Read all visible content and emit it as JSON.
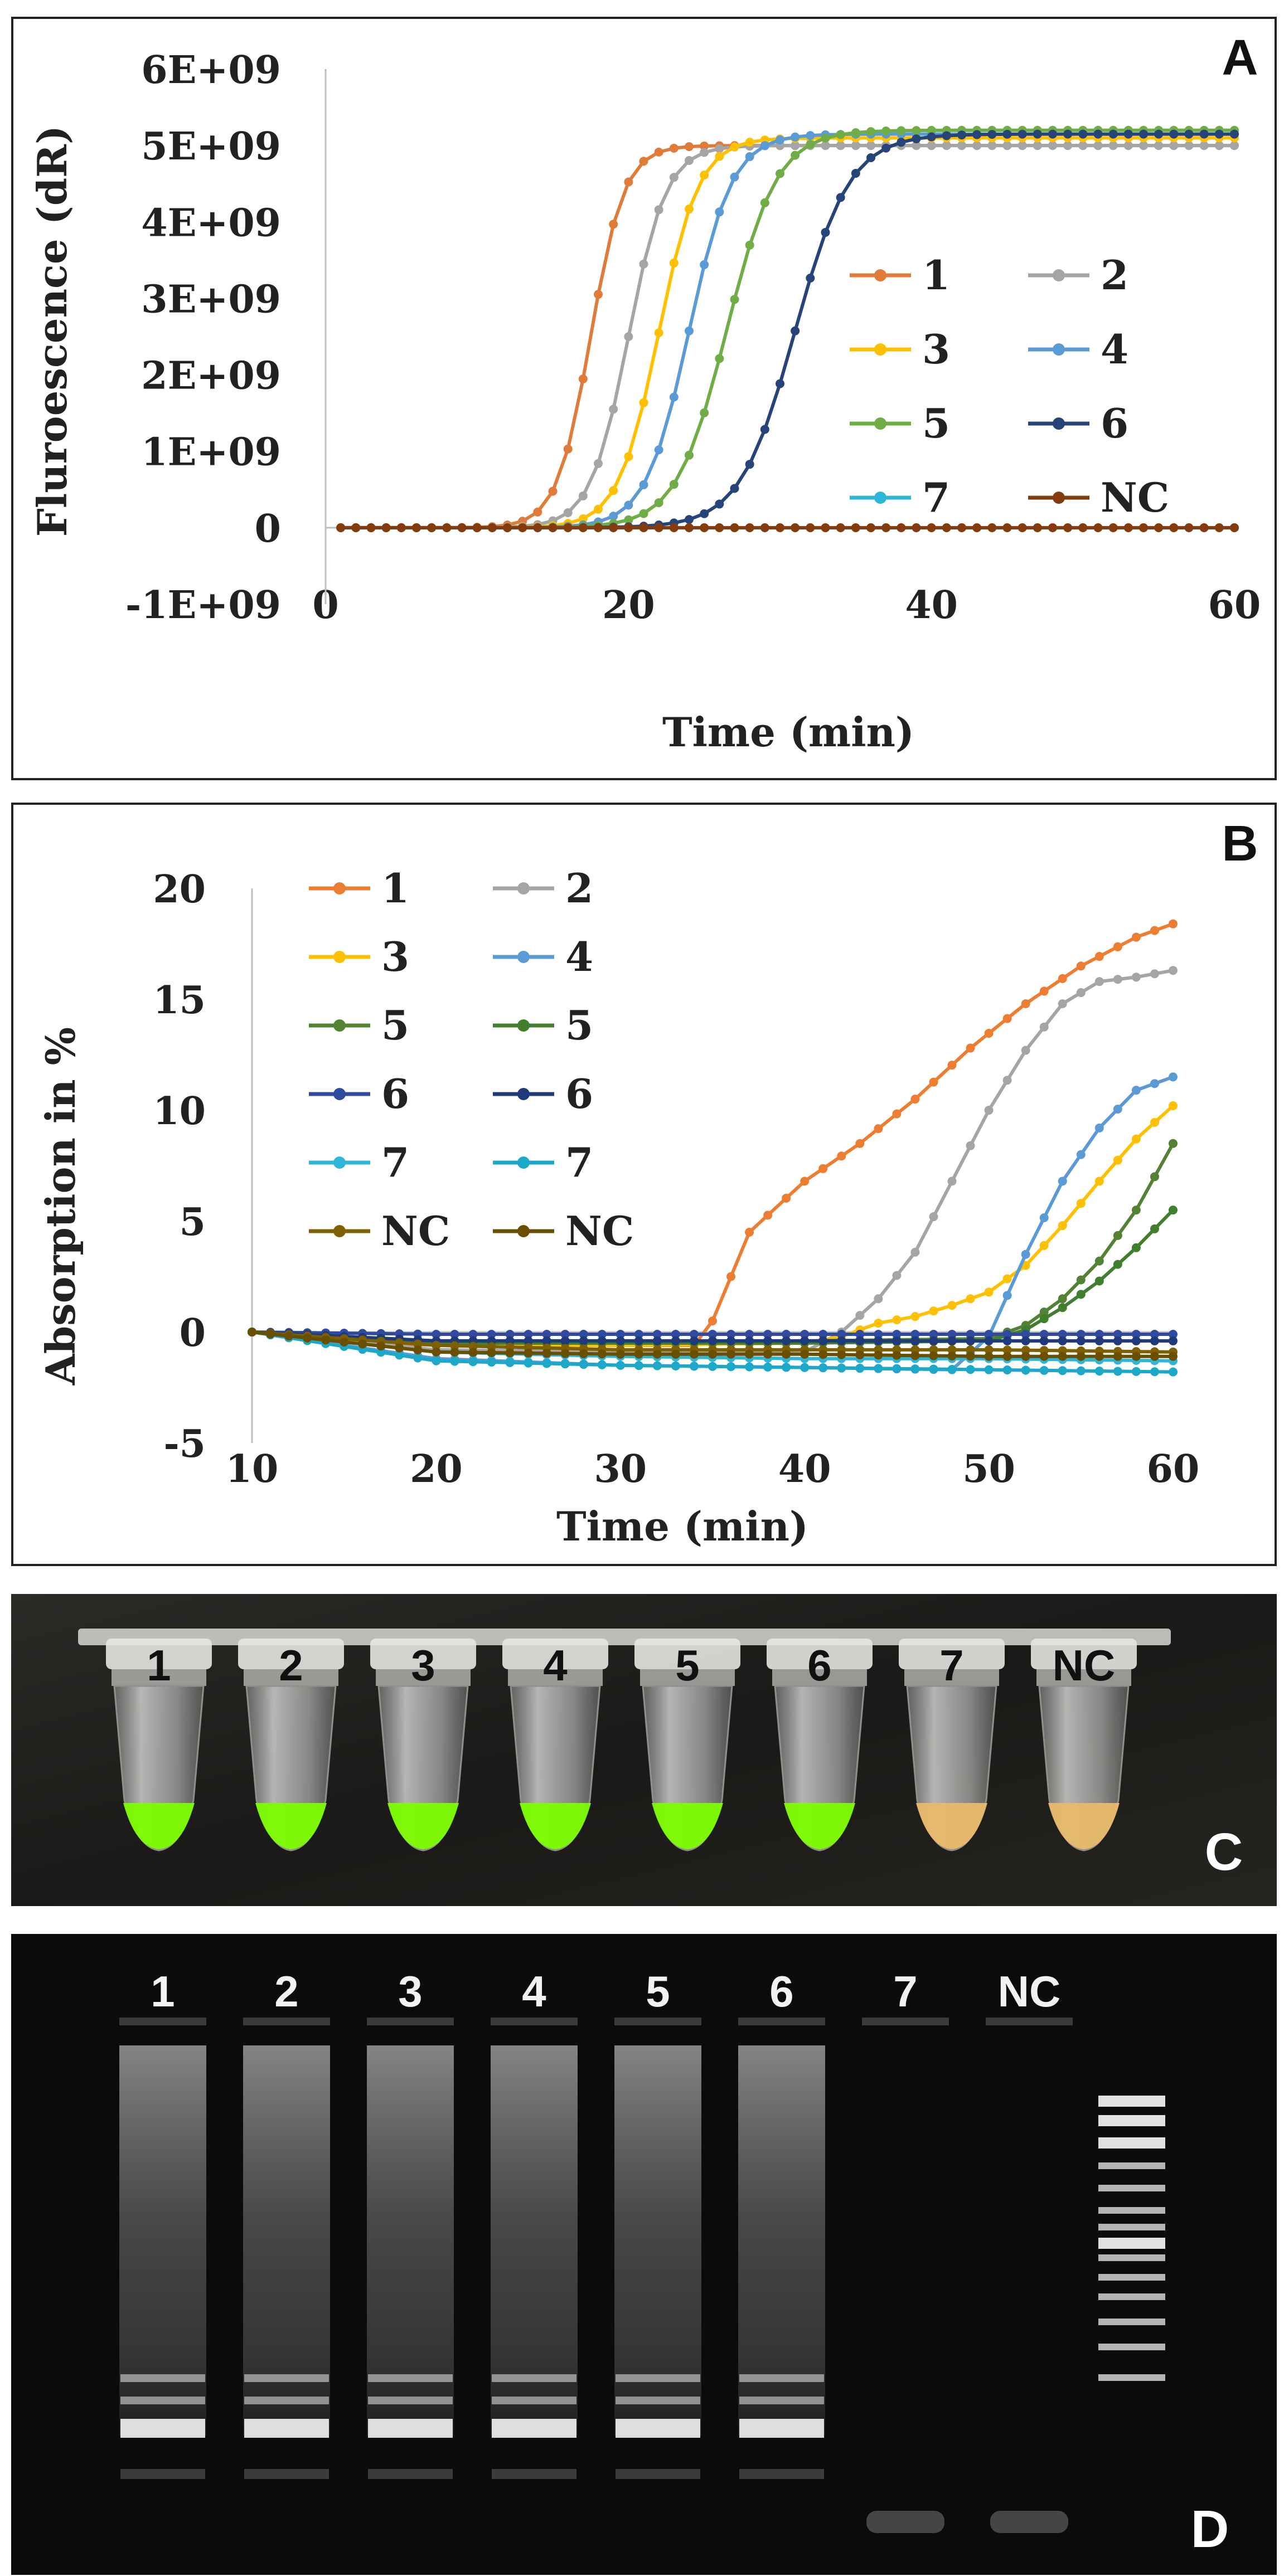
{
  "chart_data": [
    {
      "panel": "A",
      "type": "line",
      "title": "",
      "panel_label": "A",
      "xlabel": "Time (min)",
      "ylabel": "Fluroescence (dR)",
      "xlim": [
        0,
        60
      ],
      "ylim": [
        -1000000000,
        6000000000
      ],
      "x_ticks": [
        0,
        20,
        40,
        60
      ],
      "y_ticks": [
        -1000000000,
        0,
        1000000000,
        2000000000,
        3000000000,
        4000000000,
        5000000000,
        6000000000
      ],
      "y_tick_labels": [
        "-1E+09",
        "0",
        "1E+09",
        "2E+09",
        "3E+09",
        "4E+09",
        "5E+09",
        "6E+09"
      ],
      "grid": false,
      "legend_placement": "right",
      "series": [
        {
          "name": "1",
          "color": "#E07B39",
          "model": "sigmoid",
          "start": 1,
          "end": 60,
          "step": 1,
          "midpoint": 17.5,
          "steepness": 0.9,
          "plateau": 5000000000
        },
        {
          "name": "2",
          "color": "#A5A5A5",
          "model": "sigmoid",
          "start": 1,
          "end": 60,
          "step": 1,
          "midpoint": 20.0,
          "steepness": 0.8,
          "plateau": 5000000000
        },
        {
          "name": "3",
          "color": "#FFC000",
          "model": "sigmoid",
          "start": 1,
          "end": 60,
          "step": 1,
          "midpoint": 22.0,
          "steepness": 0.75,
          "plateau": 5100000000
        },
        {
          "name": "4",
          "color": "#5B9BD5",
          "model": "sigmoid",
          "start": 1,
          "end": 60,
          "step": 1,
          "midpoint": 24.0,
          "steepness": 0.7,
          "plateau": 5150000000
        },
        {
          "name": "5",
          "color": "#70AD47",
          "model": "sigmoid",
          "start": 1,
          "end": 60,
          "step": 1,
          "midpoint": 26.5,
          "steepness": 0.6,
          "plateau": 5200000000
        },
        {
          "name": "6",
          "color": "#264478",
          "model": "sigmoid",
          "start": 1,
          "end": 60,
          "step": 1,
          "midpoint": 31.0,
          "steepness": 0.55,
          "plateau": 5150000000
        },
        {
          "name": "7",
          "color": "#2EB6D8",
          "model": "flat",
          "start": 1,
          "end": 60,
          "step": 1,
          "level": 0
        },
        {
          "name": "NC",
          "color": "#843C0C",
          "model": "flat",
          "start": 1,
          "end": 60,
          "step": 1,
          "level": 0
        }
      ],
      "legend": [
        {
          "label": "1",
          "color": "#E07B39"
        },
        {
          "label": "2",
          "color": "#A5A5A5"
        },
        {
          "label": "3",
          "color": "#FFC000"
        },
        {
          "label": "4",
          "color": "#5B9BD5"
        },
        {
          "label": "5",
          "color": "#70AD47"
        },
        {
          "label": "6",
          "color": "#264478"
        },
        {
          "label": "7",
          "color": "#2EB6D8"
        },
        {
          "label": "NC",
          "color": "#843C0C"
        }
      ]
    },
    {
      "panel": "B",
      "type": "line",
      "title": "",
      "panel_label": "B",
      "xlabel": "Time (min)",
      "ylabel": "Absorption in %",
      "xlim": [
        10,
        60
      ],
      "ylim": [
        -5,
        20
      ],
      "x_ticks": [
        10,
        20,
        30,
        40,
        50,
        60
      ],
      "y_ticks": [
        -5,
        0,
        5,
        10,
        15,
        20
      ],
      "y_tick_labels": [
        "-5",
        "0",
        "5",
        "10",
        "15",
        "20"
      ],
      "grid": false,
      "legend_placement": "top-left",
      "series": [
        {
          "name": "1",
          "color": "#ED7D31",
          "x": [
            10,
            15,
            20,
            25,
            30,
            34,
            35,
            37,
            40,
            43,
            46,
            49,
            52,
            55,
            58,
            60
          ],
          "y": [
            0,
            -0.4,
            -0.6,
            -0.6,
            -0.6,
            -0.6,
            0.5,
            4.5,
            6.8,
            8.5,
            10.5,
            12.8,
            14.8,
            16.5,
            17.8,
            18.4
          ]
        },
        {
          "name": "2",
          "color": "#A5A5A5",
          "x": [
            10,
            20,
            30,
            40,
            42,
            44,
            46,
            48,
            50,
            52,
            54,
            56,
            58,
            60
          ],
          "y": [
            0,
            -0.8,
            -0.9,
            -0.9,
            0,
            1.5,
            3.6,
            6.8,
            10.0,
            12.7,
            14.8,
            15.8,
            16.0,
            16.3
          ]
        },
        {
          "name": "3",
          "color": "#FFC000",
          "x": [
            10,
            20,
            30,
            40,
            42,
            44,
            46,
            48,
            50,
            52,
            54,
            56,
            58,
            60
          ],
          "y": [
            0,
            -0.6,
            -0.6,
            -0.5,
            -0.2,
            0.4,
            0.7,
            1.2,
            1.8,
            3.0,
            4.8,
            6.8,
            8.7,
            10.2
          ]
        },
        {
          "name": "4",
          "color": "#5B9BD5",
          "x": [
            10,
            20,
            30,
            40,
            48,
            50,
            52,
            54,
            56,
            58,
            60
          ],
          "y": [
            0,
            -1.2,
            -1.5,
            -1.6,
            -1.7,
            -0.2,
            3.5,
            6.8,
            9.2,
            10.9,
            11.5
          ]
        },
        {
          "name": "5",
          "color": "#548235",
          "x": [
            10,
            20,
            30,
            40,
            50,
            52,
            54,
            56,
            58,
            60
          ],
          "y": [
            0,
            -0.4,
            -0.4,
            -0.4,
            -0.3,
            0.3,
            1.5,
            3.2,
            5.5,
            8.5
          ]
        },
        {
          "name": "5",
          "color": "#3F7F2E",
          "x": [
            10,
            20,
            30,
            40,
            50,
            52,
            54,
            56,
            58,
            60
          ],
          "y": [
            0,
            -0.5,
            -0.5,
            -0.5,
            -0.4,
            0.1,
            1.1,
            2.3,
            3.8,
            5.5
          ]
        },
        {
          "name": "6",
          "color": "#2F4A9E",
          "x": [
            10,
            20,
            30,
            40,
            50,
            60
          ],
          "y": [
            0,
            -0.1,
            -0.1,
            -0.1,
            -0.1,
            -0.1
          ]
        },
        {
          "name": "6",
          "color": "#1F3A7A",
          "x": [
            10,
            20,
            30,
            40,
            50,
            60
          ],
          "y": [
            0,
            -0.4,
            -0.4,
            -0.4,
            -0.4,
            -0.4
          ]
        },
        {
          "name": "7",
          "color": "#2EB6D8",
          "x": [
            10,
            20,
            30,
            40,
            50,
            60
          ],
          "y": [
            0,
            -0.9,
            -1.1,
            -1.2,
            -1.2,
            -1.3
          ]
        },
        {
          "name": "7",
          "color": "#1CA9C9",
          "x": [
            10,
            20,
            30,
            40,
            50,
            60
          ],
          "y": [
            0,
            -1.3,
            -1.5,
            -1.6,
            -1.7,
            -1.8
          ]
        },
        {
          "name": "NC",
          "color": "#7F6000",
          "x": [
            10,
            20,
            30,
            40,
            50,
            60
          ],
          "y": [
            0,
            -0.6,
            -0.8,
            -0.8,
            -0.8,
            -0.9
          ]
        },
        {
          "name": "NC",
          "color": "#6B4F00",
          "x": [
            10,
            20,
            30,
            40,
            50,
            60
          ],
          "y": [
            0,
            -0.9,
            -1.0,
            -1.0,
            -1.1,
            -1.1
          ]
        }
      ],
      "legend": [
        {
          "label": "1",
          "color": "#ED7D31"
        },
        {
          "label": "2",
          "color": "#A5A5A5"
        },
        {
          "label": "3",
          "color": "#FFC000"
        },
        {
          "label": "4",
          "color": "#5B9BD5"
        },
        {
          "label": "5",
          "color": "#548235"
        },
        {
          "label": "5",
          "color": "#3F7F2E"
        },
        {
          "label": "6",
          "color": "#2F4A9E"
        },
        {
          "label": "6",
          "color": "#1F3A7A"
        },
        {
          "label": "7",
          "color": "#2EB6D8"
        },
        {
          "label": "7",
          "color": "#1CA9C9"
        },
        {
          "label": "NC",
          "color": "#7F6000"
        },
        {
          "label": "NC",
          "color": "#6B4F00"
        }
      ]
    }
  ],
  "photo_c": {
    "panel_label": "C",
    "tubes": [
      {
        "label": "1",
        "liquid_color": "#7CFC00"
      },
      {
        "label": "2",
        "liquid_color": "#7CFC00"
      },
      {
        "label": "3",
        "liquid_color": "#7CFC00"
      },
      {
        "label": "4",
        "liquid_color": "#7CFC00"
      },
      {
        "label": "5",
        "liquid_color": "#7CFC00"
      },
      {
        "label": "6",
        "liquid_color": "#7CFC00"
      },
      {
        "label": "7",
        "liquid_color": "#E8B96A"
      },
      {
        "label": "NC",
        "liquid_color": "#E8B96A"
      }
    ]
  },
  "gel_d": {
    "panel_label": "D",
    "lanes": [
      {
        "label": "1",
        "has_product": true
      },
      {
        "label": "2",
        "has_product": true
      },
      {
        "label": "3",
        "has_product": true
      },
      {
        "label": "4",
        "has_product": true
      },
      {
        "label": "5",
        "has_product": true
      },
      {
        "label": "6",
        "has_product": true
      },
      {
        "label": "7",
        "has_product": false
      },
      {
        "label": "NC",
        "has_product": false
      }
    ]
  }
}
